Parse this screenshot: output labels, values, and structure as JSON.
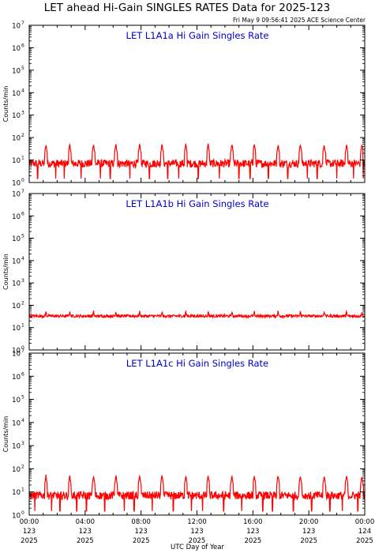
{
  "page": {
    "title": "LET ahead Hi-Gain SINGLES RATES Data for 2025-123",
    "timestamp": "Fri May  9 09:56:41 2025 ACE Science Center"
  },
  "colors": {
    "trace": "#ff0000",
    "panel_title": "#0000cc",
    "axes": "#000000",
    "background": "#ffffff"
  },
  "chart_data": [
    {
      "type": "line",
      "title": "LET L1A1a Hi Gain Singles Rate",
      "ylabel": "Counts/min",
      "yscale": "log",
      "ylim": [
        1,
        10000000
      ],
      "xlim": [
        0,
        24
      ],
      "baseline": 7,
      "spike_value": 50,
      "spike_times": [
        1.2,
        2.9,
        4.6,
        6.2,
        7.9,
        9.5,
        11.2,
        12.8,
        14.5,
        16.1,
        17.8,
        19.4,
        21.1,
        22.7,
        23.8
      ],
      "low_dropout_value": 1.5,
      "low_dropouts": [
        0.6,
        1.9,
        2.5,
        3.7,
        5.1,
        5.8,
        7.2,
        8.6,
        9.9,
        10.7,
        12.1,
        13.6,
        15.0,
        15.8,
        17.1,
        18.5,
        19.9,
        20.6,
        22.0,
        23.2,
        23.9
      ]
    },
    {
      "type": "line",
      "title": "LET L1A1b Hi Gain Singles Rate",
      "ylabel": "Counts/min",
      "yscale": "log",
      "ylim": [
        1,
        10000000
      ],
      "xlim": [
        0,
        24
      ],
      "baseline": 33,
      "spike_value": 55,
      "spike_times": [
        1.2,
        2.9,
        4.6,
        6.2,
        7.9,
        9.5,
        11.2,
        12.8,
        14.5,
        16.1,
        17.8,
        19.4,
        21.1,
        22.7,
        23.8
      ],
      "low_dropout_value": 22,
      "low_dropouts": []
    },
    {
      "type": "line",
      "title": "LET L1A1c Hi Gain Singles Rate",
      "ylabel": "Counts/min",
      "yscale": "log",
      "ylim": [
        1,
        10000000
      ],
      "xlim": [
        0,
        24
      ],
      "baseline": 7,
      "spike_value": 50,
      "spike_times": [
        1.2,
        2.9,
        4.6,
        6.2,
        7.9,
        9.5,
        11.2,
        12.8,
        14.5,
        16.1,
        17.8,
        19.4,
        21.1,
        22.7,
        23.8
      ],
      "low_dropout_value": 1.5,
      "low_dropouts": [
        0.4,
        1.6,
        2.2,
        3.4,
        4.1,
        5.4,
        6.8,
        7.5,
        8.8,
        10.3,
        11.6,
        12.4,
        13.9,
        15.2,
        16.7,
        17.4,
        18.9,
        20.2,
        21.5,
        22.4,
        23.5
      ]
    }
  ],
  "y_ticks": [
    {
      "base": "10",
      "exp": "0",
      "value": 1
    },
    {
      "base": "10",
      "exp": "1",
      "value": 10
    },
    {
      "base": "10",
      "exp": "2",
      "value": 100
    },
    {
      "base": "10",
      "exp": "3",
      "value": 1000
    },
    {
      "base": "10",
      "exp": "4",
      "value": 10000
    },
    {
      "base": "10",
      "exp": "5",
      "value": 100000
    },
    {
      "base": "10",
      "exp": "6",
      "value": 1000000
    },
    {
      "base": "10",
      "exp": "7",
      "value": 10000000
    }
  ],
  "x_ticks": [
    {
      "hour": 0,
      "time": "00:00",
      "doy": "123",
      "year": "2025"
    },
    {
      "hour": 4,
      "time": "04:00",
      "doy": "123",
      "year": "2025"
    },
    {
      "hour": 8,
      "time": "08:00",
      "doy": "123",
      "year": "2025"
    },
    {
      "hour": 12,
      "time": "12:00",
      "doy": "123",
      "year": "2025"
    },
    {
      "hour": 16,
      "time": "16:00",
      "doy": "123",
      "year": "2025"
    },
    {
      "hour": 20,
      "time": "20:00",
      "doy": "123",
      "year": "2025"
    },
    {
      "hour": 24,
      "time": "00:00",
      "doy": "124",
      "year": "2025"
    }
  ],
  "xlabel": "UTC Day of Year"
}
